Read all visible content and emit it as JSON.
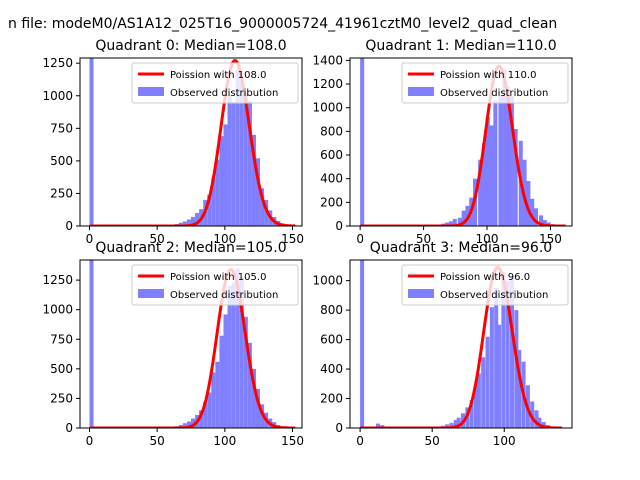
{
  "figure": {
    "suptitle": "n file: modeM0/AS1A12_025T16_9000005724_41961cztM0_level2_quad_clean"
  },
  "chart_data": [
    {
      "type": "bar",
      "title": "Quadrant 0: Median=108.0",
      "xlim": [
        -7,
        157
      ],
      "ylim": [
        0,
        1290
      ],
      "xticks": [
        0,
        50,
        100,
        150
      ],
      "yticks": [
        0,
        250,
        500,
        750,
        1000,
        1250
      ],
      "legend": {
        "placement": "top-right",
        "entries": [
          "Poission with 108.0",
          "Observed distribution"
        ]
      },
      "colors": {
        "fit": "#ff0000",
        "hist": "#8080ff"
      },
      "fit": {
        "name": "Poission with 108.0",
        "lambda": 108.0,
        "peak": 1270,
        "x_range": [
          0,
          152
        ]
      },
      "observed": {
        "name": "Observed distribution",
        "bin_width": 3,
        "bins": [
          {
            "x": 0,
            "count": 1290
          },
          {
            "x": 60,
            "count": 10
          },
          {
            "x": 63,
            "count": 15
          },
          {
            "x": 66,
            "count": 25
          },
          {
            "x": 69,
            "count": 35
          },
          {
            "x": 72,
            "count": 50
          },
          {
            "x": 75,
            "count": 70
          },
          {
            "x": 78,
            "count": 100
          },
          {
            "x": 81,
            "count": 130
          },
          {
            "x": 84,
            "count": 200
          },
          {
            "x": 87,
            "count": 240
          },
          {
            "x": 90,
            "count": 370
          },
          {
            "x": 93,
            "count": 510
          },
          {
            "x": 96,
            "count": 690
          },
          {
            "x": 99,
            "count": 780
          },
          {
            "x": 102,
            "count": 1000
          },
          {
            "x": 105,
            "count": 950
          },
          {
            "x": 108,
            "count": 1200
          },
          {
            "x": 111,
            "count": 1130
          },
          {
            "x": 114,
            "count": 1020
          },
          {
            "x": 117,
            "count": 960
          },
          {
            "x": 120,
            "count": 700
          },
          {
            "x": 123,
            "count": 520
          },
          {
            "x": 126,
            "count": 290
          },
          {
            "x": 129,
            "count": 200
          },
          {
            "x": 132,
            "count": 120
          },
          {
            "x": 135,
            "count": 70
          },
          {
            "x": 138,
            "count": 40
          },
          {
            "x": 141,
            "count": 20
          },
          {
            "x": 144,
            "count": 10
          }
        ]
      }
    },
    {
      "type": "bar",
      "title": "Quadrant 1: Median=110.0",
      "xlim": [
        -8,
        167
      ],
      "ylim": [
        0,
        1420
      ],
      "xticks": [
        0,
        50,
        100,
        150
      ],
      "yticks": [
        0,
        200,
        400,
        600,
        800,
        1000,
        1200,
        1400
      ],
      "legend": {
        "placement": "top-right",
        "entries": [
          "Poission with 110.0",
          "Observed distribution"
        ]
      },
      "colors": {
        "fit": "#ff0000",
        "hist": "#8080ff"
      },
      "fit": {
        "name": "Poission with 110.0",
        "lambda": 110.0,
        "peak": 1350,
        "x_range": [
          0,
          162
        ]
      },
      "observed": {
        "name": "Observed distribution",
        "bin_width": 3.2,
        "bins": [
          {
            "x": 0,
            "count": 1420
          },
          {
            "x": 60,
            "count": 10
          },
          {
            "x": 64,
            "count": 20
          },
          {
            "x": 67,
            "count": 30
          },
          {
            "x": 70,
            "count": 40
          },
          {
            "x": 73,
            "count": 60
          },
          {
            "x": 77,
            "count": 70
          },
          {
            "x": 80,
            "count": 130
          },
          {
            "x": 83,
            "count": 170
          },
          {
            "x": 86,
            "count": 240
          },
          {
            "x": 89,
            "count": 400
          },
          {
            "x": 93,
            "count": 560
          },
          {
            "x": 96,
            "count": 700
          },
          {
            "x": 99,
            "count": 920
          },
          {
            "x": 102,
            "count": 850
          },
          {
            "x": 105,
            "count": 1060
          },
          {
            "x": 109,
            "count": 1100
          },
          {
            "x": 112,
            "count": 1330
          },
          {
            "x": 115,
            "count": 1180
          },
          {
            "x": 118,
            "count": 1100
          },
          {
            "x": 121,
            "count": 820
          },
          {
            "x": 125,
            "count": 720
          },
          {
            "x": 128,
            "count": 560
          },
          {
            "x": 131,
            "count": 380
          },
          {
            "x": 134,
            "count": 230
          },
          {
            "x": 137,
            "count": 150
          },
          {
            "x": 141,
            "count": 90
          },
          {
            "x": 144,
            "count": 50
          },
          {
            "x": 147,
            "count": 30
          },
          {
            "x": 150,
            "count": 15
          }
        ]
      }
    },
    {
      "type": "bar",
      "title": "Quadrant 2: Median=105.0",
      "xlim": [
        -7,
        157
      ],
      "ylim": [
        0,
        1420
      ],
      "xticks": [
        0,
        50,
        100,
        150
      ],
      "yticks": [
        0,
        250,
        500,
        750,
        1000,
        1250
      ],
      "legend": {
        "placement": "top-right",
        "entries": [
          "Poission with 105.0",
          "Observed distribution"
        ]
      },
      "colors": {
        "fit": "#ff0000",
        "hist": "#8080ff"
      },
      "fit": {
        "name": "Poission with 105.0",
        "lambda": 105.0,
        "peak": 1340,
        "x_range": [
          0,
          152
        ]
      },
      "observed": {
        "name": "Observed distribution",
        "bin_width": 3,
        "bins": [
          {
            "x": 0,
            "count": 1420
          },
          {
            "x": 60,
            "count": 10
          },
          {
            "x": 63,
            "count": 15
          },
          {
            "x": 66,
            "count": 25
          },
          {
            "x": 69,
            "count": 40
          },
          {
            "x": 72,
            "count": 55
          },
          {
            "x": 75,
            "count": 80
          },
          {
            "x": 78,
            "count": 110
          },
          {
            "x": 81,
            "count": 150
          },
          {
            "x": 84,
            "count": 220
          },
          {
            "x": 87,
            "count": 300
          },
          {
            "x": 90,
            "count": 470
          },
          {
            "x": 93,
            "count": 560
          },
          {
            "x": 96,
            "count": 780
          },
          {
            "x": 99,
            "count": 960
          },
          {
            "x": 102,
            "count": 1200
          },
          {
            "x": 105,
            "count": 1230
          },
          {
            "x": 108,
            "count": 1350
          },
          {
            "x": 111,
            "count": 1270
          },
          {
            "x": 114,
            "count": 940
          },
          {
            "x": 117,
            "count": 720
          },
          {
            "x": 120,
            "count": 500
          },
          {
            "x": 123,
            "count": 330
          },
          {
            "x": 126,
            "count": 200
          },
          {
            "x": 129,
            "count": 130
          },
          {
            "x": 132,
            "count": 80
          },
          {
            "x": 135,
            "count": 50
          },
          {
            "x": 138,
            "count": 25
          },
          {
            "x": 141,
            "count": 10
          }
        ]
      }
    },
    {
      "type": "bar",
      "title": "Quadrant 3: Median=96.0",
      "xlim": [
        -7,
        147
      ],
      "ylim": [
        0,
        1140
      ],
      "xticks": [
        0,
        50,
        100
      ],
      "yticks": [
        0,
        200,
        400,
        600,
        800,
        1000
      ],
      "legend": {
        "placement": "top-right",
        "entries": [
          "Poission with 96.0",
          "Observed distribution"
        ]
      },
      "colors": {
        "fit": "#ff0000",
        "hist": "#8080ff"
      },
      "fit": {
        "name": "Poission with 96.0",
        "lambda": 96.0,
        "peak": 1090,
        "x_range": [
          0,
          140
        ]
      },
      "observed": {
        "name": "Observed distribution",
        "bin_width": 2.8,
        "bins": [
          {
            "x": 0,
            "count": 1140
          },
          {
            "x": 11,
            "count": 30
          },
          {
            "x": 14,
            "count": 20
          },
          {
            "x": 53,
            "count": 10
          },
          {
            "x": 56,
            "count": 15
          },
          {
            "x": 59,
            "count": 25
          },
          {
            "x": 62,
            "count": 35
          },
          {
            "x": 65,
            "count": 55
          },
          {
            "x": 67,
            "count": 70
          },
          {
            "x": 70,
            "count": 100
          },
          {
            "x": 73,
            "count": 140
          },
          {
            "x": 76,
            "count": 190
          },
          {
            "x": 79,
            "count": 290
          },
          {
            "x": 81,
            "count": 370
          },
          {
            "x": 84,
            "count": 480
          },
          {
            "x": 87,
            "count": 620
          },
          {
            "x": 90,
            "count": 820
          },
          {
            "x": 93,
            "count": 950
          },
          {
            "x": 95,
            "count": 700
          },
          {
            "x": 98,
            "count": 1060
          },
          {
            "x": 101,
            "count": 1000
          },
          {
            "x": 104,
            "count": 1020
          },
          {
            "x": 107,
            "count": 800
          },
          {
            "x": 109,
            "count": 530
          },
          {
            "x": 112,
            "count": 450
          },
          {
            "x": 115,
            "count": 290
          },
          {
            "x": 118,
            "count": 180
          },
          {
            "x": 121,
            "count": 120
          },
          {
            "x": 123,
            "count": 70
          },
          {
            "x": 126,
            "count": 40
          },
          {
            "x": 129,
            "count": 20
          }
        ]
      }
    }
  ]
}
